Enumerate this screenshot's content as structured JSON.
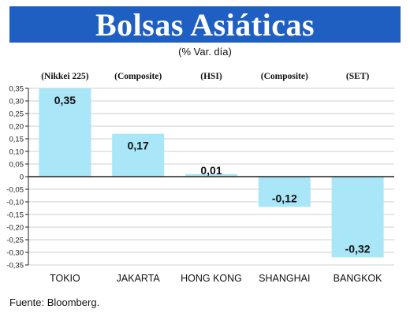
{
  "header": {
    "title": "Bolsas Asiáticas",
    "subtitle": "(% Var. día)"
  },
  "footer": {
    "source": "Fuente: Bloomberg."
  },
  "colors": {
    "title_bg": "#1f5fc2",
    "bar": "#a9e6f7",
    "grid": "#cfcfcf",
    "axis": "#222222"
  },
  "chart_data": {
    "type": "bar",
    "title": "Bolsas Asiáticas",
    "subtitle": "(% Var. día)",
    "categories": [
      "TOKIO",
      "JAKARTA",
      "HONG KONG",
      "SHANGHAI",
      "BANGKOK"
    ],
    "index_labels": [
      "(Nikkei 225)",
      "(Composite)",
      "(HSI)",
      "(Composite)",
      "(SET)"
    ],
    "values": [
      0.35,
      0.17,
      0.01,
      -0.12,
      -0.32
    ],
    "value_labels": [
      "0,35",
      "0,17",
      "0,01",
      "-0,12",
      "-0,32"
    ],
    "ylim": [
      -0.35,
      0.35
    ],
    "yticks": [
      0.35,
      0.3,
      0.25,
      0.2,
      0.15,
      0.1,
      0.05,
      0,
      -0.05,
      -0.1,
      -0.15,
      -0.2,
      -0.25,
      -0.3,
      -0.35
    ],
    "ytick_labels": [
      "0,35",
      "0,30",
      "0,25",
      "0,20",
      "0,15",
      "0,10",
      "0,05",
      "0",
      "-0,05",
      "-0,10",
      "-0,15",
      "-0,20",
      "-0,25",
      "-0,30",
      "-0,35"
    ],
    "grid": true,
    "xlabel": "",
    "ylabel": ""
  }
}
